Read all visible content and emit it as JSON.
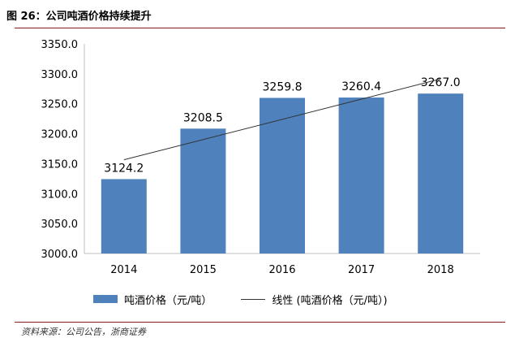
{
  "figure_title": "图 26：公司吨酒价格持续提升",
  "source_text": "资料来源：公司公告，浙商证券",
  "colors": {
    "bar": "#4f81bd",
    "line": "#333333",
    "rule": "#8b1a1a",
    "text": "#000000"
  },
  "legend": {
    "bar_label": "吨酒价格（元/吨）",
    "line_label": "线性 (吨酒价格（元/吨）)"
  },
  "chart_data": {
    "type": "bar",
    "categories": [
      "2014",
      "2015",
      "2016",
      "2017",
      "2018"
    ],
    "series": [
      {
        "name": "吨酒价格（元/吨）",
        "values": [
          3124.2,
          3208.5,
          3259.8,
          3260.4,
          3267.0
        ]
      }
    ],
    "data_labels": [
      "3124.2",
      "3208.5",
      "3259.8",
      "3260.4",
      "3267.0"
    ],
    "trendline": {
      "name": "线性 (吨酒价格（元/吨）)",
      "type": "linear"
    },
    "y_ticks": [
      "3000.0",
      "3050.0",
      "3100.0",
      "3150.0",
      "3200.0",
      "3250.0",
      "3300.0",
      "3350.0"
    ],
    "ylim": [
      3000,
      3350
    ],
    "xlabel": "",
    "ylabel": "",
    "grid": false,
    "legend_position": "bottom"
  }
}
